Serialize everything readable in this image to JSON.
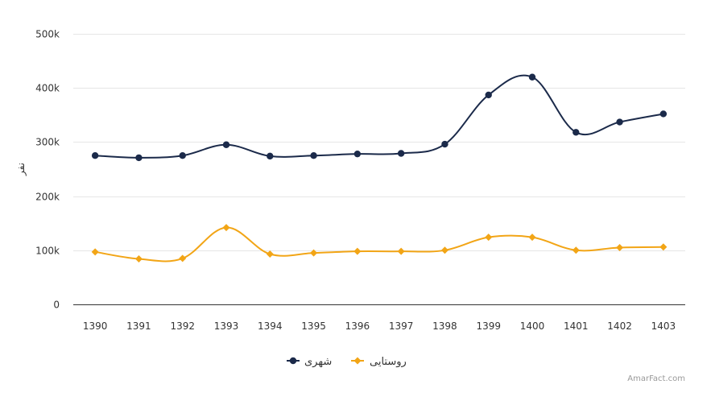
{
  "chart_data": {
    "type": "line",
    "title": "",
    "xlabel": "",
    "ylabel": "نفر",
    "ylim": [
      0,
      500000
    ],
    "yticks": [
      0,
      100000,
      200000,
      300000,
      400000,
      500000
    ],
    "ytick_labels": [
      "0",
      "100k",
      "200k",
      "300k",
      "400k",
      "500k"
    ],
    "categories": [
      "1390",
      "1391",
      "1392",
      "1393",
      "1394",
      "1395",
      "1396",
      "1397",
      "1398",
      "1399",
      "1400",
      "1401",
      "1402",
      "1403"
    ],
    "series": [
      {
        "name": "شهری",
        "color": "#1b2a4a",
        "marker": "circle",
        "values": [
          275000,
          271000,
          275000,
          295000,
          274000,
          275000,
          278000,
          279000,
          296000,
          387000,
          420000,
          318000,
          337000,
          352000
        ]
      },
      {
        "name": "روستایی",
        "color": "#f2a516",
        "marker": "diamond",
        "values": [
          97000,
          84000,
          85000,
          142000,
          93000,
          95000,
          98000,
          98000,
          100000,
          124000,
          124000,
          100000,
          105000,
          106000
        ]
      }
    ],
    "grid": true,
    "legend": "bottom-center"
  },
  "credit": "AmarFact.com"
}
